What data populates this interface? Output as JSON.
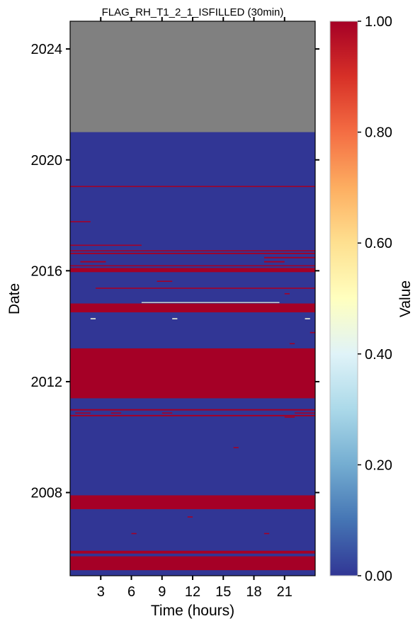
{
  "chart_data": {
    "type": "heatmap",
    "title": "FLAG_RH_T1_2_1_ISFILLED (30min)",
    "xlabel": "Time (hours)",
    "ylabel": "Date",
    "xlim": [
      0,
      24
    ],
    "ylim": [
      2005.0,
      2025.0
    ],
    "x_ticks": [
      3,
      6,
      9,
      12,
      15,
      18,
      21
    ],
    "x_tick_labels": [
      "3",
      "6",
      "9",
      "12",
      "15",
      "18",
      "21"
    ],
    "y_ticks": [
      2008,
      2012,
      2016,
      2020,
      2024
    ],
    "y_tick_labels": [
      "2008",
      "2012",
      "2016",
      "2020",
      "2024"
    ],
    "colorbar": {
      "label": "Value",
      "range": [
        0,
        1
      ],
      "ticks": [
        0.0,
        0.2,
        0.4,
        0.6,
        0.8,
        1.0
      ],
      "tick_labels": [
        "0.00",
        "0.20",
        "0.40",
        "0.60",
        "0.80",
        "1.00"
      ],
      "colormap": "RdYlBu_r",
      "colors": [
        "#313695",
        "#4575b4",
        "#74add1",
        "#abd9e9",
        "#e0f3f8",
        "#ffffbf",
        "#fee090",
        "#fdae61",
        "#f46d43",
        "#d73027",
        "#a50026"
      ]
    },
    "base_value": 0,
    "missing_color": "#808080",
    "missing_range": {
      "date_from": 2021.0,
      "date_to": 2025.0
    },
    "value_bands": [
      {
        "date_from": 2005.2,
        "date_to": 2005.7,
        "hour_from": 0,
        "hour_to": 24,
        "value": 1
      },
      {
        "date_from": 2005.8,
        "date_to": 2005.9,
        "hour_from": 0,
        "hour_to": 24,
        "value": 1
      },
      {
        "date_from": 2007.4,
        "date_to": 2007.9,
        "hour_from": 0,
        "hour_to": 24,
        "value": 1
      },
      {
        "date_from": 2011.4,
        "date_to": 2013.2,
        "hour_from": 0,
        "hour_to": 24,
        "value": 1
      },
      {
        "date_from": 2014.5,
        "date_to": 2014.82,
        "hour_from": 0,
        "hour_to": 24,
        "value": 1
      },
      {
        "date_from": 2015.95,
        "date_to": 2016.1,
        "hour_from": 0,
        "hour_to": 24,
        "value": 1
      },
      {
        "date_from": 2016.16,
        "date_to": 2016.2,
        "hour_from": 0,
        "hour_to": 24,
        "value": 1
      },
      {
        "date_from": 2016.6,
        "date_to": 2016.65,
        "hour_from": 0,
        "hour_to": 24,
        "value": 1
      },
      {
        "date_from": 2016.7,
        "date_to": 2016.74,
        "hour_from": 0,
        "hour_to": 24,
        "value": 1
      },
      {
        "date_from": 2010.75,
        "date_to": 2010.8,
        "hour_from": 0,
        "hour_to": 24,
        "value": 1
      },
      {
        "date_from": 2010.96,
        "date_to": 2011.01,
        "hour_from": 0,
        "hour_to": 24,
        "value": 1
      },
      {
        "date_from": 2019.02,
        "date_to": 2019.06,
        "hour_from": 0,
        "hour_to": 24,
        "value": 1
      },
      {
        "date_from": 2016.9,
        "date_to": 2016.94,
        "hour_from": 0,
        "hour_to": 7,
        "value": 1
      },
      {
        "date_from": 2016.3,
        "date_to": 2016.35,
        "hour_from": 1,
        "hour_to": 3.5,
        "value": 1
      },
      {
        "date_from": 2016.3,
        "date_to": 2016.35,
        "hour_from": 19,
        "hour_to": 21,
        "value": 1
      },
      {
        "date_from": 2016.45,
        "date_to": 2016.5,
        "hour_from": 19,
        "hour_to": 24,
        "value": 1
      },
      {
        "date_from": 2015.35,
        "date_to": 2015.39,
        "hour_from": 2.5,
        "hour_to": 24,
        "value": 1
      },
      {
        "date_from": 2015.6,
        "date_to": 2015.64,
        "hour_from": 8.5,
        "hour_to": 10,
        "value": 1
      },
      {
        "date_from": 2017.75,
        "date_to": 2017.79,
        "hour_from": 0,
        "hour_to": 2,
        "value": 1
      },
      {
        "date_from": 2013.35,
        "date_to": 2013.39,
        "hour_from": 21.5,
        "hour_to": 22,
        "value": 1
      },
      {
        "date_from": 2013.75,
        "date_to": 2013.79,
        "hour_from": 23.5,
        "hour_to": 24,
        "value": 1
      },
      {
        "date_from": 2015.15,
        "date_to": 2015.19,
        "hour_from": 21,
        "hour_to": 21.5,
        "value": 1
      },
      {
        "date_from": 2010.85,
        "date_to": 2010.89,
        "hour_from": 0.5,
        "hour_to": 2,
        "value": 1
      },
      {
        "date_from": 2010.85,
        "date_to": 2010.89,
        "hour_from": 4,
        "hour_to": 5,
        "value": 1
      },
      {
        "date_from": 2010.85,
        "date_to": 2010.89,
        "hour_from": 9,
        "hour_to": 10,
        "value": 1
      },
      {
        "date_from": 2010.85,
        "date_to": 2010.89,
        "hour_from": 22,
        "hour_to": 24,
        "value": 1
      },
      {
        "date_from": 2010.7,
        "date_to": 2010.74,
        "hour_from": 21,
        "hour_to": 22,
        "value": 1
      },
      {
        "date_from": 2009.6,
        "date_to": 2009.64,
        "hour_from": 16,
        "hour_to": 16.5,
        "value": 1
      },
      {
        "date_from": 2007.1,
        "date_to": 2007.14,
        "hour_from": 11.5,
        "hour_to": 12,
        "value": 1
      },
      {
        "date_from": 2006.5,
        "date_to": 2006.54,
        "hour_from": 6,
        "hour_to": 6.5,
        "value": 1
      },
      {
        "date_from": 2006.5,
        "date_to": 2006.54,
        "hour_from": 19,
        "hour_to": 19.5,
        "value": 1
      },
      {
        "date_from": 2014.85,
        "date_to": 2014.87,
        "hour_from": 7,
        "hour_to": 20.5,
        "value": 0.45
      },
      {
        "date_from": 2014.25,
        "date_to": 2014.29,
        "hour_from": 2,
        "hour_to": 2.5,
        "value": 0.45
      },
      {
        "date_from": 2014.25,
        "date_to": 2014.29,
        "hour_from": 10,
        "hour_to": 10.5,
        "value": 0.45
      },
      {
        "date_from": 2014.25,
        "date_to": 2014.29,
        "hour_from": 23,
        "hour_to": 23.5,
        "value": 0.45
      }
    ]
  }
}
